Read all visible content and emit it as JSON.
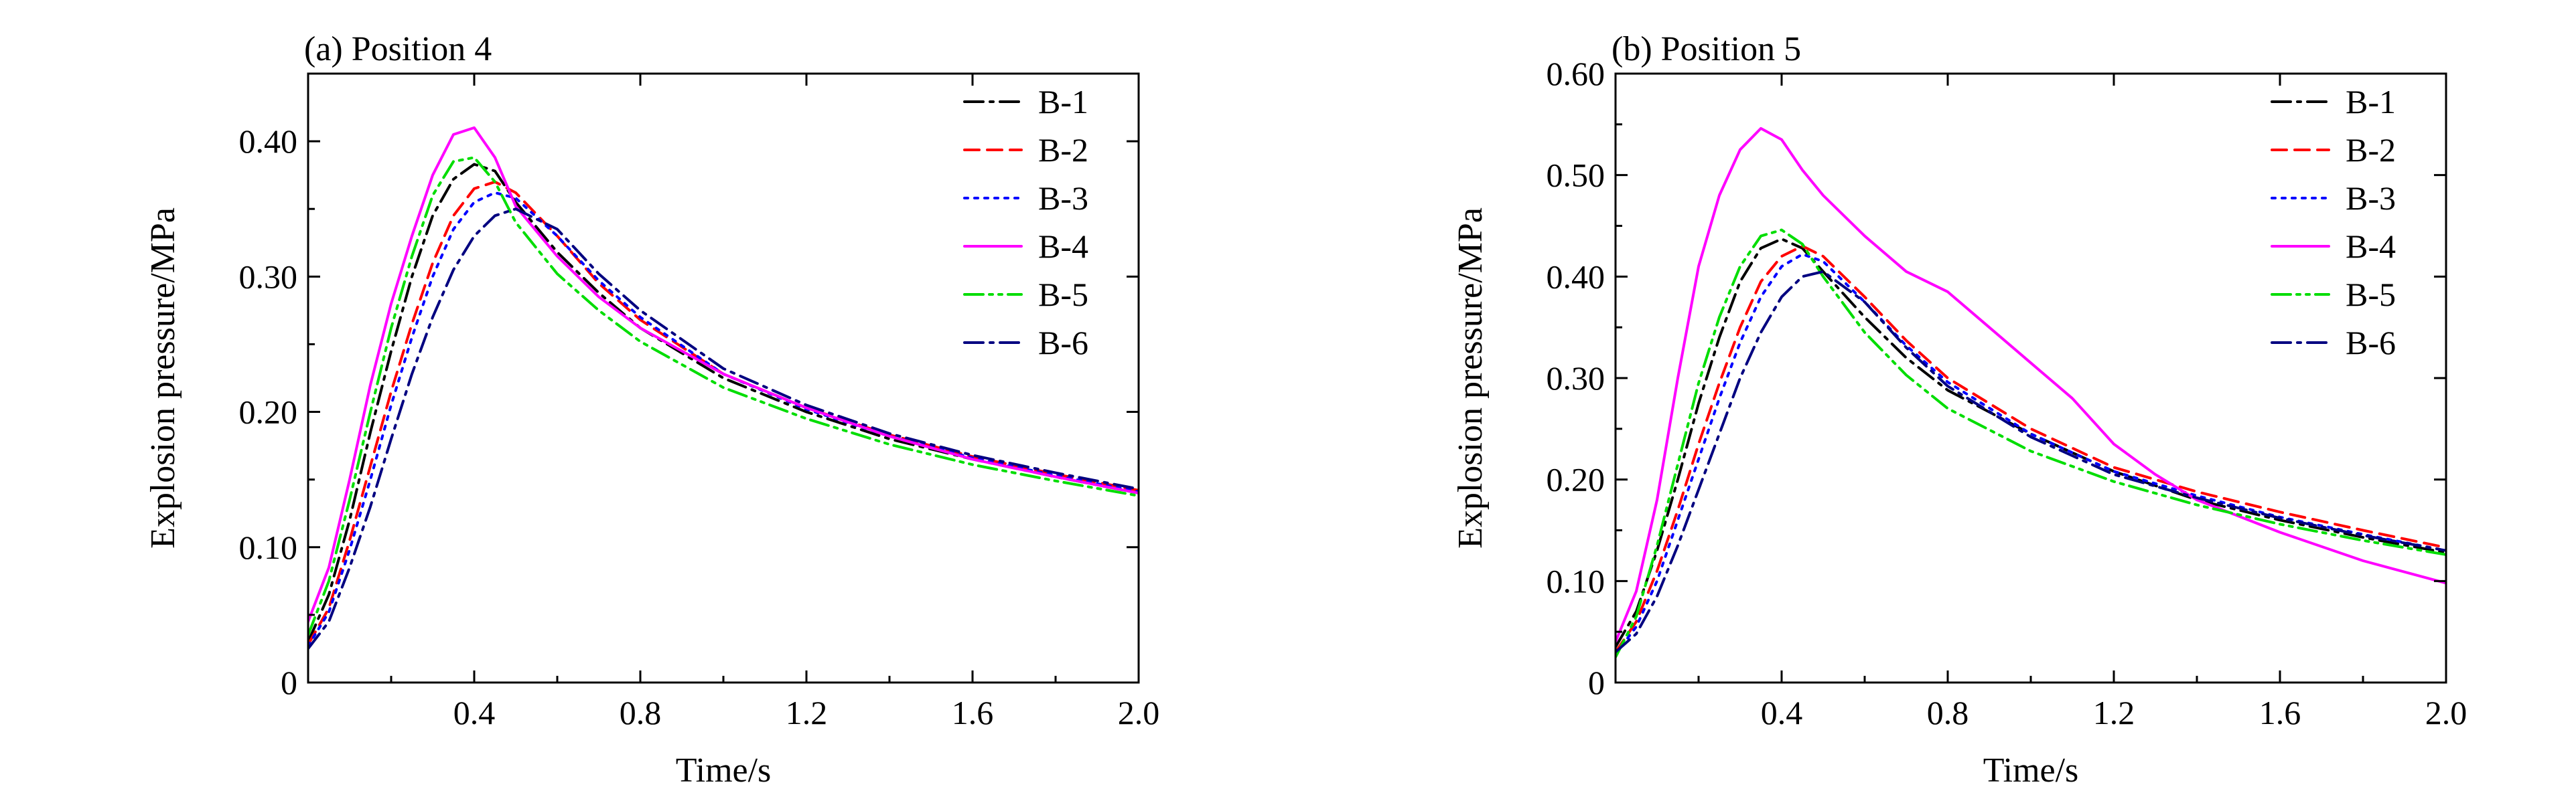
{
  "chart_data": [
    {
      "type": "line",
      "title": "(a) Position 4",
      "xlabel": "Time/s",
      "ylabel": "Explosion pressure/MPa",
      "xlim": [
        0,
        2.0
      ],
      "ylim": [
        0,
        0.45
      ],
      "xticks": [
        0.4,
        0.8,
        1.2,
        1.6,
        2.0
      ],
      "xtick_labels": [
        "0.4",
        "0.8",
        "1.2",
        "1.6",
        "2.0"
      ],
      "yticks": [
        0,
        0.1,
        0.2,
        0.3,
        0.4
      ],
      "ytick_labels": [
        "0",
        "0.10",
        "0.20",
        "0.30",
        "0.40"
      ],
      "grid": false,
      "legend_position": "top-right",
      "series": [
        {
          "name": "B-1",
          "color": "#000000",
          "dash": "dashdot",
          "x": [
            0,
            0.05,
            0.1,
            0.15,
            0.2,
            0.25,
            0.3,
            0.35,
            0.4,
            0.45,
            0.5,
            0.6,
            0.7,
            0.8,
            1.0,
            1.2,
            1.4,
            1.6,
            1.8,
            2.0
          ],
          "y": [
            0.03,
            0.065,
            0.12,
            0.185,
            0.245,
            0.3,
            0.345,
            0.372,
            0.383,
            0.378,
            0.355,
            0.318,
            0.288,
            0.262,
            0.225,
            0.2,
            0.18,
            0.165,
            0.152,
            0.14
          ]
        },
        {
          "name": "B-2",
          "color": "#ff0000",
          "dash": "dashed",
          "x": [
            0,
            0.05,
            0.1,
            0.15,
            0.2,
            0.25,
            0.3,
            0.35,
            0.4,
            0.45,
            0.5,
            0.6,
            0.7,
            0.8,
            1.0,
            1.2,
            1.4,
            1.6,
            1.8,
            2.0
          ],
          "y": [
            0.028,
            0.055,
            0.105,
            0.16,
            0.215,
            0.265,
            0.31,
            0.345,
            0.365,
            0.37,
            0.362,
            0.33,
            0.295,
            0.268,
            0.228,
            0.203,
            0.183,
            0.167,
            0.154,
            0.142
          ]
        },
        {
          "name": "B-3",
          "color": "#0000ff",
          "dash": "dotted",
          "x": [
            0,
            0.05,
            0.1,
            0.15,
            0.2,
            0.25,
            0.3,
            0.35,
            0.4,
            0.45,
            0.5,
            0.6,
            0.7,
            0.8,
            1.0,
            1.2,
            1.4,
            1.6,
            1.8,
            2.0
          ],
          "y": [
            0.027,
            0.052,
            0.098,
            0.15,
            0.205,
            0.255,
            0.3,
            0.335,
            0.355,
            0.362,
            0.358,
            0.33,
            0.297,
            0.27,
            0.228,
            0.202,
            0.182,
            0.166,
            0.153,
            0.141
          ]
        },
        {
          "name": "B-4",
          "color": "#ff00ff",
          "dash": "solid",
          "x": [
            0,
            0.05,
            0.1,
            0.15,
            0.2,
            0.25,
            0.3,
            0.35,
            0.4,
            0.45,
            0.5,
            0.6,
            0.7,
            0.8,
            1.0,
            1.2,
            1.4,
            1.6,
            1.8,
            2.0
          ],
          "y": [
            0.045,
            0.085,
            0.15,
            0.22,
            0.28,
            0.33,
            0.375,
            0.405,
            0.41,
            0.388,
            0.352,
            0.315,
            0.285,
            0.262,
            0.228,
            0.203,
            0.182,
            0.165,
            0.152,
            0.14
          ]
        },
        {
          "name": "B-5",
          "color": "#00dd00",
          "dash": "dashdotdot",
          "x": [
            0,
            0.05,
            0.1,
            0.15,
            0.2,
            0.25,
            0.3,
            0.35,
            0.4,
            0.45,
            0.5,
            0.6,
            0.7,
            0.8,
            1.0,
            1.2,
            1.4,
            1.6,
            1.8,
            2.0
          ],
          "y": [
            0.035,
            0.075,
            0.135,
            0.2,
            0.262,
            0.315,
            0.36,
            0.385,
            0.388,
            0.37,
            0.34,
            0.302,
            0.275,
            0.252,
            0.218,
            0.195,
            0.176,
            0.161,
            0.149,
            0.138
          ]
        },
        {
          "name": "B-6",
          "color": "#000080",
          "dash": "dashdot",
          "x": [
            0,
            0.05,
            0.1,
            0.15,
            0.2,
            0.25,
            0.3,
            0.35,
            0.4,
            0.45,
            0.5,
            0.6,
            0.7,
            0.8,
            1.0,
            1.2,
            1.4,
            1.6,
            1.8,
            2.0
          ],
          "y": [
            0.025,
            0.045,
            0.085,
            0.13,
            0.18,
            0.228,
            0.27,
            0.305,
            0.33,
            0.345,
            0.35,
            0.335,
            0.302,
            0.275,
            0.232,
            0.205,
            0.184,
            0.168,
            0.155,
            0.143
          ]
        }
      ]
    },
    {
      "type": "line",
      "title": "(b) Position 5",
      "xlabel": "Time/s",
      "ylabel": "Explosion pressure/MPa",
      "xlim": [
        0,
        2.0
      ],
      "ylim": [
        0,
        0.6
      ],
      "xticks": [
        0.4,
        0.8,
        1.2,
        1.6,
        2.0
      ],
      "xtick_labels": [
        "0.4",
        "0.8",
        "1.2",
        "1.6",
        "2.0"
      ],
      "yticks": [
        0,
        0.1,
        0.2,
        0.3,
        0.4,
        0.5,
        0.6
      ],
      "ytick_labels": [
        "0",
        "0.10",
        "0.20",
        "0.30",
        "0.40",
        "0.50",
        "0.60"
      ],
      "grid": false,
      "legend_position": "top-right",
      "series": [
        {
          "name": "B-1",
          "color": "#000000",
          "dash": "dashdot",
          "x": [
            0,
            0.05,
            0.1,
            0.15,
            0.2,
            0.25,
            0.3,
            0.35,
            0.4,
            0.45,
            0.5,
            0.6,
            0.7,
            0.8,
            1.0,
            1.2,
            1.4,
            1.6,
            1.8,
            2.0
          ],
          "y": [
            0.035,
            0.07,
            0.13,
            0.2,
            0.275,
            0.34,
            0.395,
            0.428,
            0.437,
            0.428,
            0.405,
            0.36,
            0.32,
            0.288,
            0.245,
            0.208,
            0.18,
            0.16,
            0.143,
            0.128
          ]
        },
        {
          "name": "B-2",
          "color": "#ff0000",
          "dash": "dashed",
          "x": [
            0,
            0.05,
            0.1,
            0.15,
            0.2,
            0.25,
            0.3,
            0.35,
            0.4,
            0.45,
            0.5,
            0.6,
            0.7,
            0.8,
            1.0,
            1.2,
            1.4,
            1.6,
            1.8,
            2.0
          ],
          "y": [
            0.03,
            0.06,
            0.11,
            0.17,
            0.235,
            0.295,
            0.35,
            0.395,
            0.42,
            0.43,
            0.42,
            0.38,
            0.337,
            0.3,
            0.25,
            0.212,
            0.188,
            0.168,
            0.15,
            0.133
          ]
        },
        {
          "name": "B-3",
          "color": "#0000ff",
          "dash": "dotted",
          "x": [
            0,
            0.05,
            0.1,
            0.15,
            0.2,
            0.25,
            0.3,
            0.35,
            0.4,
            0.45,
            0.5,
            0.6,
            0.7,
            0.8,
            1.0,
            1.2,
            1.4,
            1.6,
            1.8,
            2.0
          ],
          "y": [
            0.028,
            0.055,
            0.1,
            0.16,
            0.22,
            0.28,
            0.335,
            0.38,
            0.41,
            0.422,
            0.415,
            0.375,
            0.332,
            0.296,
            0.245,
            0.208,
            0.184,
            0.163,
            0.146,
            0.13
          ]
        },
        {
          "name": "B-4",
          "color": "#ff00ff",
          "dash": "solid",
          "x": [
            0,
            0.05,
            0.1,
            0.15,
            0.2,
            0.25,
            0.3,
            0.35,
            0.4,
            0.45,
            0.5,
            0.6,
            0.7,
            0.8,
            0.9,
            1.0,
            1.1,
            1.2,
            1.3,
            1.4,
            1.6,
            1.8,
            2.0
          ],
          "y": [
            0.04,
            0.09,
            0.18,
            0.3,
            0.41,
            0.48,
            0.525,
            0.546,
            0.535,
            0.505,
            0.48,
            0.44,
            0.405,
            0.385,
            0.35,
            0.315,
            0.28,
            0.235,
            0.205,
            0.18,
            0.148,
            0.12,
            0.098
          ]
        },
        {
          "name": "B-5",
          "color": "#00dd00",
          "dash": "dashdotdot",
          "x": [
            0,
            0.05,
            0.1,
            0.15,
            0.2,
            0.25,
            0.3,
            0.35,
            0.4,
            0.45,
            0.5,
            0.6,
            0.7,
            0.8,
            1.0,
            1.2,
            1.4,
            1.6,
            1.8,
            2.0
          ],
          "y": [
            0.025,
            0.065,
            0.135,
            0.215,
            0.295,
            0.36,
            0.41,
            0.44,
            0.446,
            0.432,
            0.4,
            0.345,
            0.303,
            0.27,
            0.228,
            0.198,
            0.175,
            0.156,
            0.14,
            0.126
          ]
        },
        {
          "name": "B-6",
          "color": "#000080",
          "dash": "dashdot",
          "x": [
            0,
            0.05,
            0.1,
            0.15,
            0.2,
            0.25,
            0.3,
            0.35,
            0.4,
            0.45,
            0.5,
            0.6,
            0.7,
            0.8,
            1.0,
            1.2,
            1.4,
            1.6,
            1.8,
            2.0
          ],
          "y": [
            0.03,
            0.048,
            0.085,
            0.135,
            0.19,
            0.245,
            0.3,
            0.345,
            0.38,
            0.4,
            0.405,
            0.375,
            0.33,
            0.292,
            0.242,
            0.205,
            0.182,
            0.162,
            0.145,
            0.13
          ]
        }
      ]
    }
  ]
}
